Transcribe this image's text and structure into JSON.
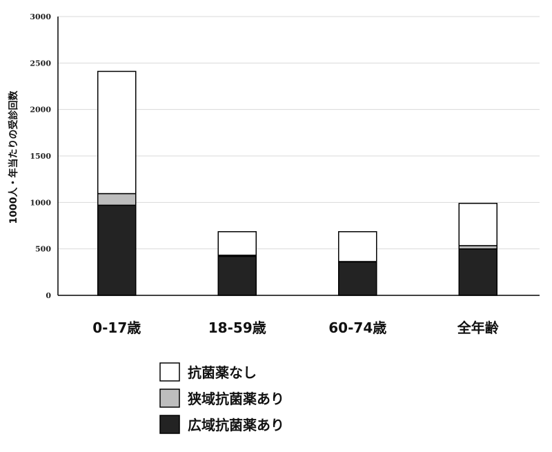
{
  "chart_data": {
    "type": "bar",
    "stacked": true,
    "title": "",
    "xlabel": "",
    "ylabel": "1000人・年当たりの受診回数",
    "ylim": [
      0,
      3000
    ],
    "yticks": [
      "0",
      "500",
      "1000",
      "1500",
      "2000",
      "2500",
      "3000"
    ],
    "grid": true,
    "legend_position": "bottom",
    "categories": [
      "0-17歳",
      "18-59歳",
      "60-74歳",
      "全年齢"
    ],
    "series": [
      {
        "name": "広域抗菌薬あり",
        "color": "#232323",
        "values": [
          970,
          420,
          360,
          500
        ]
      },
      {
        "name": "狭域抗菌薬あり",
        "color": "#bdbdbd",
        "values": [
          125,
          12,
          4,
          35
        ]
      },
      {
        "name": "抗菌薬なし",
        "color": "#ffffff",
        "values": [
          1315,
          253,
          321,
          455
        ]
      }
    ],
    "legend_order": [
      "抗菌薬なし",
      "狭域抗菌薬あり",
      "広域抗菌薬あり"
    ]
  }
}
